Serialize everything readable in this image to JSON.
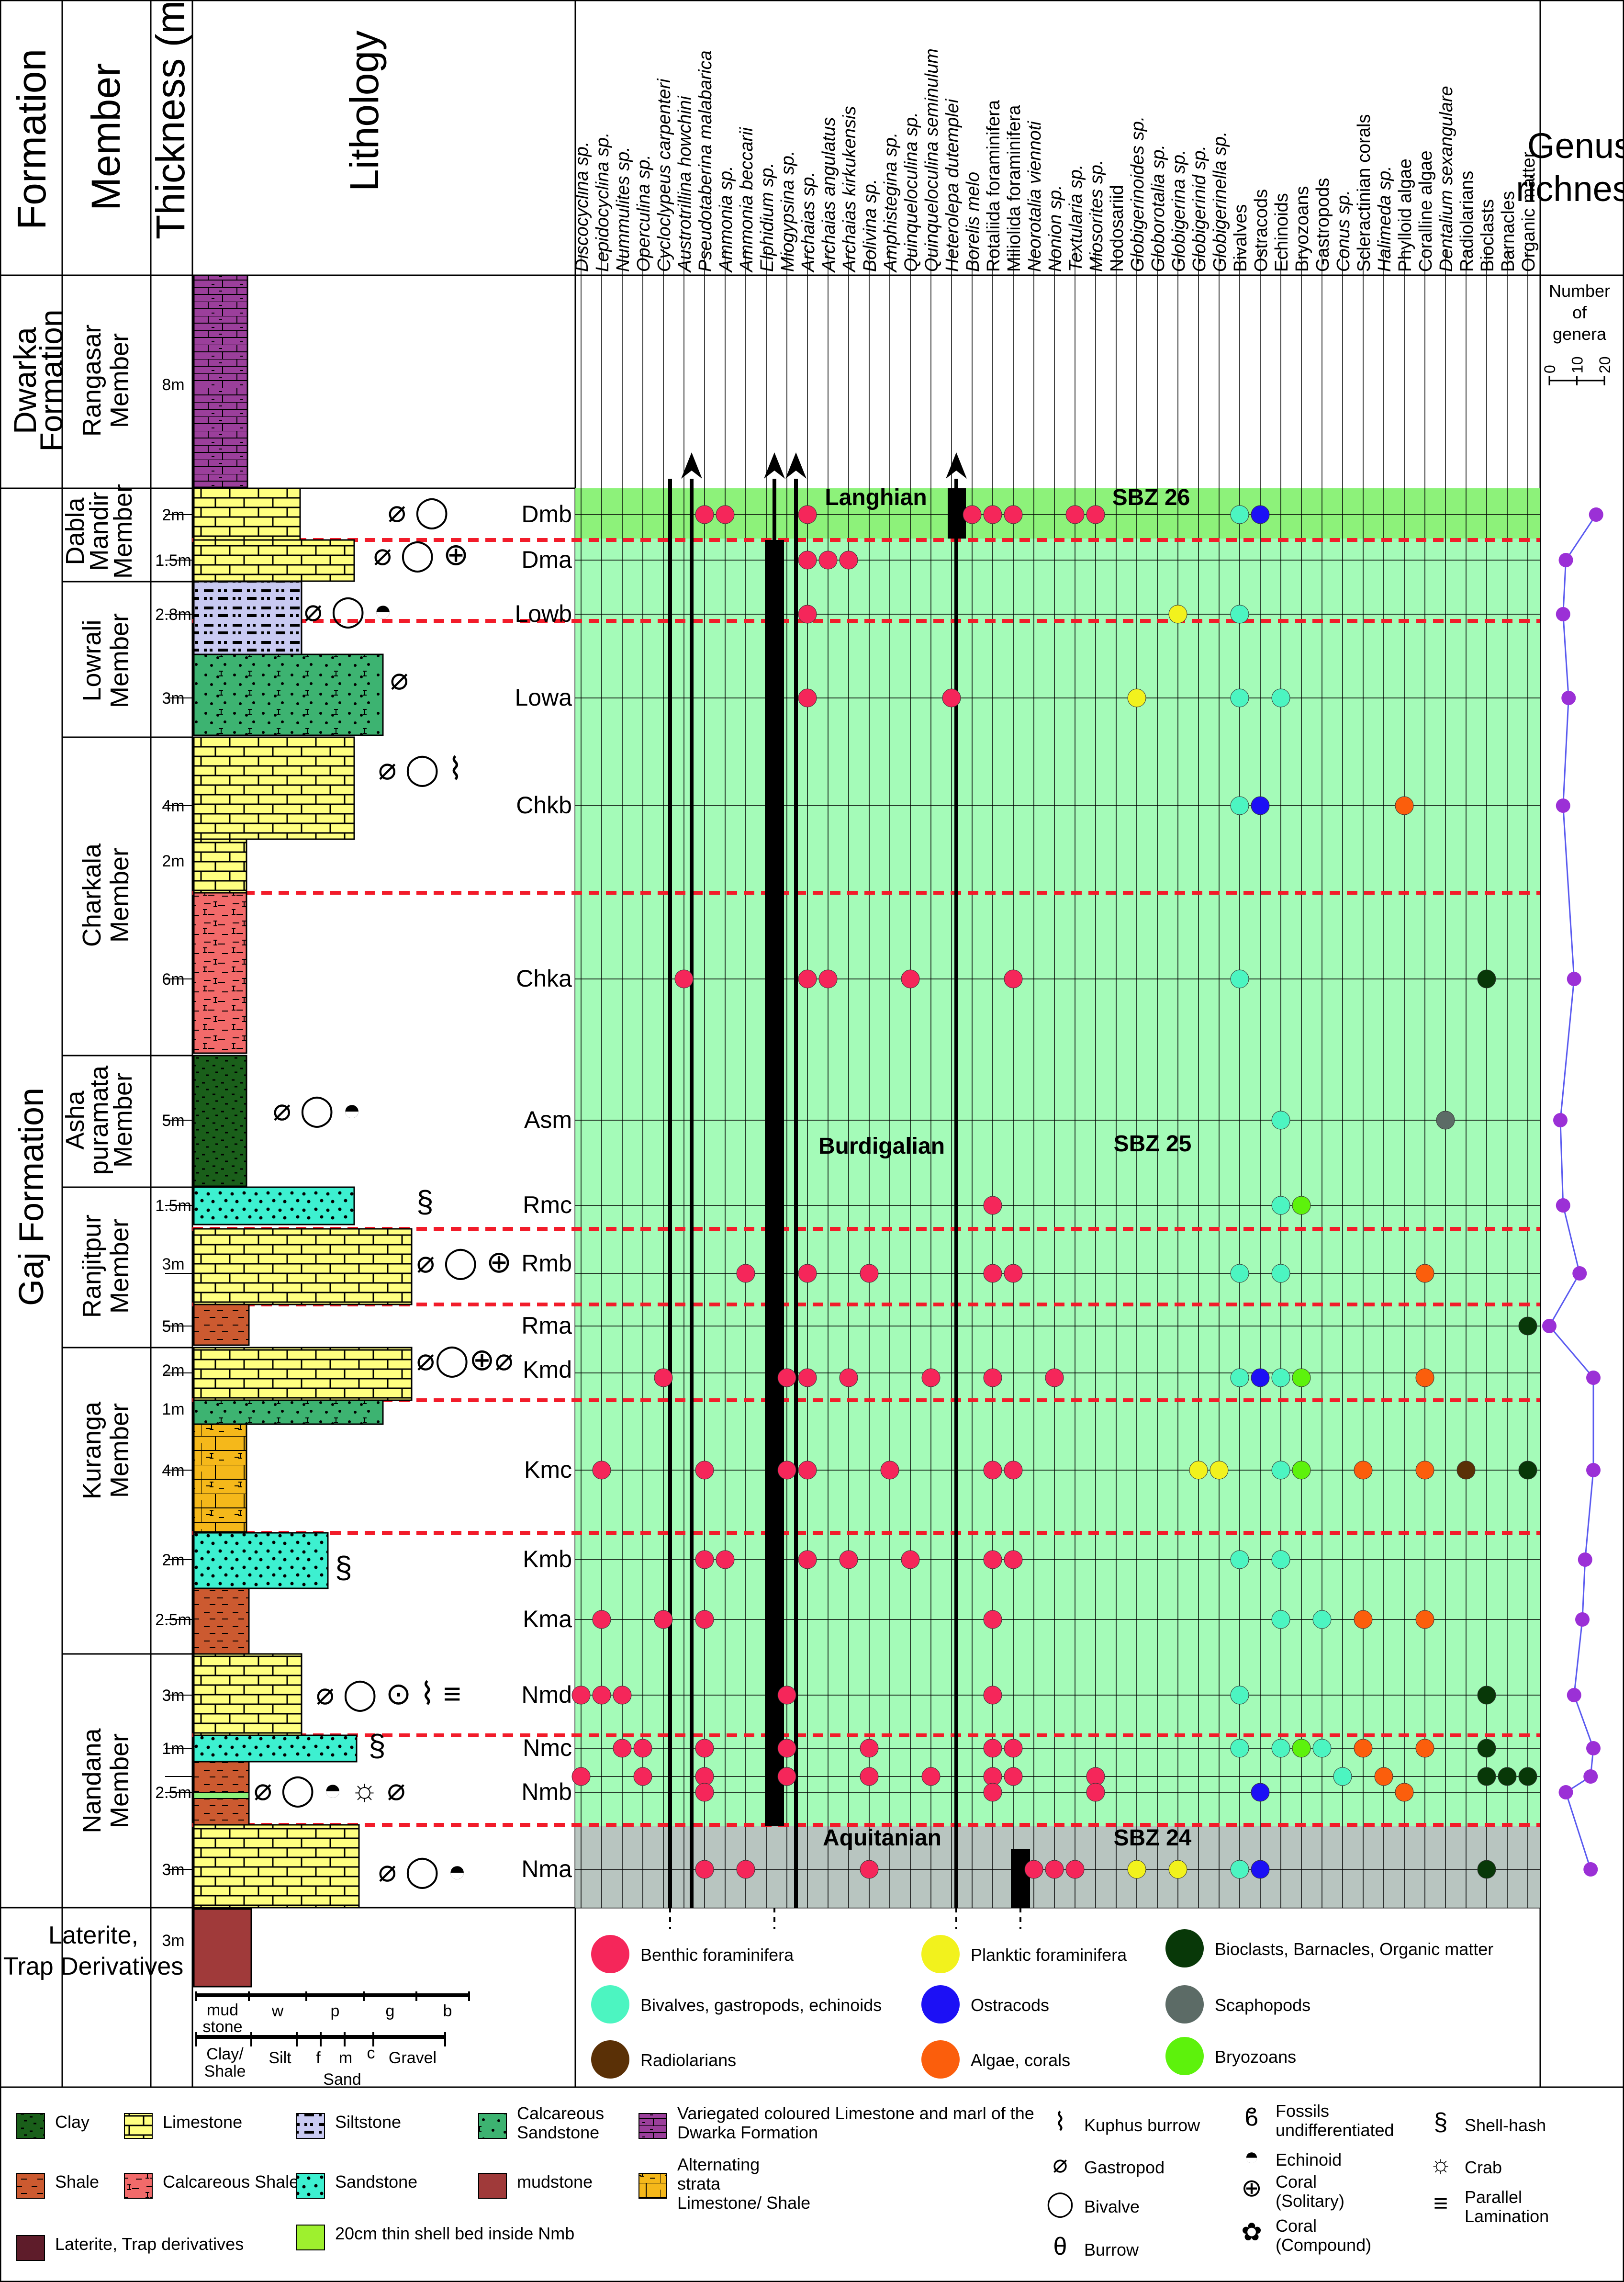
{
  "headers": {
    "formation": "Formation",
    "member": "Member",
    "thickness": "Thickness (m)",
    "lithology": "Lithology",
    "genus_richness": "Genus richness",
    "richness_axis_title": "Number of genera",
    "richness_ticks": [
      "0",
      "10",
      "20"
    ]
  },
  "formations": [
    {
      "id": "dwarka",
      "name": "Dwarka Formation"
    },
    {
      "id": "gaj",
      "name": "Gaj Formation"
    },
    {
      "id": "laterite",
      "name": "Laterite, Trap Derivatives"
    }
  ],
  "members": [
    {
      "id": "rangasar",
      "name": "Rangasar Member"
    },
    {
      "id": "dabla",
      "name": "Dabla Mandir Member"
    },
    {
      "id": "lowrali",
      "name": "Lowrali Member"
    },
    {
      "id": "charkala",
      "name": "Charkala Member"
    },
    {
      "id": "asha",
      "name": "Asha puramata Member"
    },
    {
      "id": "ranjitpur",
      "name": "Ranjitpur Member"
    },
    {
      "id": "kuranga",
      "name": "Kuranga Member"
    },
    {
      "id": "nandana",
      "name": "Nandana Member"
    }
  ],
  "taxa": [
    {
      "name": "Discocyclina sp.",
      "italic": true
    },
    {
      "name": "Lepidocyclina sp.",
      "italic": true
    },
    {
      "name": "Nummulites sp.",
      "italic": true
    },
    {
      "name": "Operculina sp.",
      "italic": true
    },
    {
      "name": "Cycloclypeus carpenteri",
      "italic": true
    },
    {
      "name": "Austrotrillina howchini",
      "italic": true
    },
    {
      "name": "Pseudotaberina malabarica",
      "italic": true
    },
    {
      "name": "Ammonia sp.",
      "italic": true
    },
    {
      "name": "Ammonia beccarii",
      "italic": true
    },
    {
      "name": "Elphidium sp.",
      "italic": true
    },
    {
      "name": "Miogypsina sp.",
      "italic": true
    },
    {
      "name": "Archaias sp.",
      "italic": true
    },
    {
      "name": "Archaias angulatus",
      "italic": true
    },
    {
      "name": "Archaias kirkukensis",
      "italic": true
    },
    {
      "name": "Bolivina sp.",
      "italic": true
    },
    {
      "name": "Amphistegina sp.",
      "italic": true
    },
    {
      "name": "Quinqueloculina sp.",
      "italic": true
    },
    {
      "name": "Quinqueloculina seminulum",
      "italic": true
    },
    {
      "name": "Heterolepa dutemplei",
      "italic": true
    },
    {
      "name": "Borelis melo",
      "italic": true
    },
    {
      "name": "Rotaliida foraminifera",
      "italic": false
    },
    {
      "name": "Miliolida foraminifera",
      "italic": false
    },
    {
      "name": "Neorotalia viennoti",
      "italic": true
    },
    {
      "name": "Nonion sp.",
      "italic": true
    },
    {
      "name": "Textularia sp.",
      "italic": true
    },
    {
      "name": "Miosorites sp.",
      "italic": true
    },
    {
      "name": "Nodosariid",
      "italic": false
    },
    {
      "name": "Globigerinoides sp.",
      "italic": true
    },
    {
      "name": "Globorotalia sp.",
      "italic": true
    },
    {
      "name": "Globigerina sp.",
      "italic": true
    },
    {
      "name": "Globigerinid sp.",
      "italic": true
    },
    {
      "name": "Globigerinella sp.",
      "italic": true
    },
    {
      "name": "Bivalves",
      "italic": false
    },
    {
      "name": "Ostracods",
      "italic": false
    },
    {
      "name": "Echinoids",
      "italic": false
    },
    {
      "name": "Bryozoans",
      "italic": false
    },
    {
      "name": "Gastropods",
      "italic": false
    },
    {
      "name": "Conus sp.",
      "italic": true
    },
    {
      "name": "Scleractinian corals",
      "italic": false
    },
    {
      "name": "Halimeda sp.",
      "italic": true
    },
    {
      "name": "Phylloid algae",
      "italic": false
    },
    {
      "name": "Coralline algae",
      "italic": false
    },
    {
      "name": "Dentalium sexangulare",
      "italic": true
    },
    {
      "name": "Radiolarians",
      "italic": false
    },
    {
      "name": "Bioclasts",
      "italic": false
    },
    {
      "name": "Barnacles",
      "italic": false
    },
    {
      "name": "Organic matter",
      "italic": false
    }
  ],
  "samples": [
    {
      "code": "Dmb",
      "thickness": "2m"
    },
    {
      "code": "Dma",
      "thickness": "1.5m"
    },
    {
      "code": "Lowb",
      "thickness": "2.8m"
    },
    {
      "code": "Lowa",
      "thickness": "3m"
    },
    {
      "code": "Chkb",
      "thickness": "4m"
    },
    {
      "code": "Chka",
      "thickness": "6m"
    },
    {
      "code": "Asm",
      "thickness": "5m"
    },
    {
      "code": "Rmc",
      "thickness": "1.5m"
    },
    {
      "code": "Rmb",
      "thickness": "3m"
    },
    {
      "code": "Rma",
      "thickness": "5m"
    },
    {
      "code": "Kmd",
      "thickness": "2m"
    },
    {
      "code": "Kmc",
      "thickness": "4m"
    },
    {
      "code": "Kmb",
      "thickness": "2m"
    },
    {
      "code": "Kma",
      "thickness": "2.5m"
    },
    {
      "code": "Nmd",
      "thickness": "3m"
    },
    {
      "code": "Nmc",
      "thickness": "1m"
    },
    {
      "code": "Nmb",
      "thickness": "2.5m"
    },
    {
      "code": "Nma",
      "thickness": "3m"
    }
  ],
  "extra_thickness": [
    {
      "id": "rangasar",
      "label": "8m"
    },
    {
      "id": "charkala-upper",
      "label": "2m"
    },
    {
      "id": "kuranga-mid",
      "label": "1m"
    },
    {
      "id": "laterite",
      "label": "3m"
    }
  ],
  "stages": [
    {
      "name": "Langhian",
      "zone": "SBZ 26"
    },
    {
      "name": "Burdigalian",
      "zone": "SBZ 25"
    },
    {
      "name": "Aquitanian",
      "zone": "SBZ 24"
    }
  ],
  "grain_scale": {
    "top": [
      "mud stone",
      "w",
      "p",
      "g",
      "b"
    ],
    "bottom": [
      "Clay/ Shale",
      "Silt",
      "f",
      "m",
      "c",
      "Gravel"
    ],
    "sand": "Sand"
  },
  "occurrence_legend": [
    {
      "label": "Benthic foraminifera",
      "color": "#f5265a"
    },
    {
      "label": "Bivalves, gastropods, echinoids",
      "color": "#4cf5c1"
    },
    {
      "label": "Radiolarians",
      "color": "#5a3006"
    },
    {
      "label": "Planktic foraminifera",
      "color": "#f2f21d"
    },
    {
      "label": "Ostracods",
      "color": "#1c10f5"
    },
    {
      "label": "Algae, corals",
      "color": "#fb5e0c"
    },
    {
      "label": "Bioclasts, Barnacles, Organic matter",
      "color": "#083808"
    },
    {
      "label": "Scaphopods",
      "color": "#5c6b66"
    },
    {
      "label": "Bryozoans",
      "color": "#5df20c"
    }
  ],
  "lithology_legend": [
    {
      "label": "Clay",
      "pattern": "clay"
    },
    {
      "label": "Limestone",
      "pattern": "limestone"
    },
    {
      "label": "Siltstone",
      "pattern": "siltstone"
    },
    {
      "label": "Calcareous Sandstone",
      "pattern": "calcsand"
    },
    {
      "label": "Variegated coloured Limestone and marl of the Dwarka Formation",
      "pattern": "dwarka"
    },
    {
      "label": "Shale",
      "pattern": "shale"
    },
    {
      "label": "Calcareous Shale",
      "pattern": "calcshale"
    },
    {
      "label": "Sandstone",
      "pattern": "sandstone"
    },
    {
      "label": "mudstone",
      "pattern": "mudstone"
    },
    {
      "label": "Alternating strata Limestone/ Shale",
      "pattern": "alternating"
    },
    {
      "label": "Laterite, Trap derivatives",
      "pattern": "laterite"
    },
    {
      "label": "20cm thin shell bed inside Nmb",
      "pattern": "shellbed"
    }
  ],
  "symbol_legend": [
    {
      "label": "Kuphus burrow",
      "icon": "kuphus"
    },
    {
      "label": "Gastropod",
      "icon": "gastropod"
    },
    {
      "label": "Bivalve",
      "icon": "bivalve"
    },
    {
      "label": "Burrow",
      "icon": "burrow"
    },
    {
      "label": "Fossils undifferentiated",
      "icon": "fossil"
    },
    {
      "label": "Echinoid",
      "icon": "echinoid"
    },
    {
      "label": "Coral (Solitary)",
      "icon": "coral-solitary"
    },
    {
      "label": "Coral (Compound)",
      "icon": "coral-compound"
    },
    {
      "label": "Shell-hash",
      "icon": "shellhash"
    },
    {
      "label": "Crab",
      "icon": "crab"
    },
    {
      "label": "Parallel Lamination",
      "icon": "lamination"
    }
  ],
  "richness": [
    {
      "sample": "Dmb",
      "genera": 17
    },
    {
      "sample": "Dma",
      "genera": 6
    },
    {
      "sample": "Lowb",
      "genera": 5
    },
    {
      "sample": "Lowa",
      "genera": 7
    },
    {
      "sample": "Chkb",
      "genera": 5
    },
    {
      "sample": "Chka",
      "genera": 9
    },
    {
      "sample": "Asm",
      "genera": 4
    },
    {
      "sample": "Rmc",
      "genera": 5
    },
    {
      "sample": "Rmb",
      "genera": 11
    },
    {
      "sample": "Rma",
      "genera": 0
    },
    {
      "sample": "Kmd",
      "genera": 16
    },
    {
      "sample": "Kmc",
      "genera": 16
    },
    {
      "sample": "Kmb",
      "genera": 13
    },
    {
      "sample": "Kma",
      "genera": 12
    },
    {
      "sample": "Nmd",
      "genera": 9
    },
    {
      "sample": "Nmc",
      "genera": 16
    },
    {
      "sample": "Nmb",
      "genera": 15
    },
    {
      "sample": "Nmb2",
      "genera": 6
    },
    {
      "sample": "Nma",
      "genera": 15
    }
  ],
  "occurrences": [
    {
      "r": 0,
      "c": [
        6,
        7,
        11,
        19,
        20,
        21,
        24,
        25
      ],
      "k": "b"
    },
    {
      "r": 0,
      "c": [
        32
      ],
      "k": "v"
    },
    {
      "r": 0,
      "c": [
        33
      ],
      "k": "o"
    },
    {
      "r": 1,
      "c": [
        11,
        12,
        13
      ],
      "k": "b"
    },
    {
      "r": 2,
      "c": [
        11
      ],
      "k": "b"
    },
    {
      "r": 2,
      "c": [
        29
      ],
      "k": "p"
    },
    {
      "r": 2,
      "c": [
        32
      ],
      "k": "v"
    },
    {
      "r": 3,
      "c": [
        11,
        18
      ],
      "k": "b"
    },
    {
      "r": 3,
      "c": [
        27
      ],
      "k": "p"
    },
    {
      "r": 3,
      "c": [
        32,
        34
      ],
      "k": "v"
    },
    {
      "r": 4,
      "c": [
        32
      ],
      "k": "v"
    },
    {
      "r": 4,
      "c": [
        33
      ],
      "k": "o"
    },
    {
      "r": 4,
      "c": [
        40
      ],
      "k": "a"
    },
    {
      "r": 5,
      "c": [
        5,
        11,
        12,
        16,
        21
      ],
      "k": "b"
    },
    {
      "r": 5,
      "c": [
        32
      ],
      "k": "v"
    },
    {
      "r": 5,
      "c": [
        44
      ],
      "k": "x"
    },
    {
      "r": 6,
      "c": [
        34
      ],
      "k": "v"
    },
    {
      "r": 6,
      "c": [
        42
      ],
      "k": "s"
    },
    {
      "r": 7,
      "c": [
        20
      ],
      "k": "b"
    },
    {
      "r": 7,
      "c": [
        34
      ],
      "k": "v"
    },
    {
      "r": 7,
      "c": [
        35
      ],
      "k": "z"
    },
    {
      "r": 8,
      "c": [
        8,
        11,
        14,
        20,
        21
      ],
      "k": "b"
    },
    {
      "r": 8,
      "c": [
        32,
        34
      ],
      "k": "v"
    },
    {
      "r": 8,
      "c": [
        41
      ],
      "k": "a"
    },
    {
      "r": 9,
      "c": [
        46
      ],
      "k": "x"
    },
    {
      "r": 10,
      "c": [
        4,
        10,
        11,
        13,
        17,
        20,
        23
      ],
      "k": "b"
    },
    {
      "r": 10,
      "c": [
        32,
        34
      ],
      "k": "v"
    },
    {
      "r": 10,
      "c": [
        33
      ],
      "k": "o"
    },
    {
      "r": 10,
      "c": [
        35
      ],
      "k": "z"
    },
    {
      "r": 10,
      "c": [
        41
      ],
      "k": "a"
    },
    {
      "r": 11,
      "c": [
        1,
        6,
        10,
        11,
        15,
        20,
        21
      ],
      "k": "b"
    },
    {
      "r": 11,
      "c": [
        30,
        31
      ],
      "k": "p"
    },
    {
      "r": 11,
      "c": [
        34
      ],
      "k": "v"
    },
    {
      "r": 11,
      "c": [
        35
      ],
      "k": "z"
    },
    {
      "r": 11,
      "c": [
        38,
        41
      ],
      "k": "a"
    },
    {
      "r": 11,
      "c": [
        43
      ],
      "k": "r"
    },
    {
      "r": 11,
      "c": [
        46
      ],
      "k": "x"
    },
    {
      "r": 12,
      "c": [
        6,
        7,
        11,
        13,
        16,
        20,
        21
      ],
      "k": "b"
    },
    {
      "r": 12,
      "c": [
        32,
        34
      ],
      "k": "v"
    },
    {
      "r": 13,
      "c": [
        1,
        4,
        6,
        20
      ],
      "k": "b"
    },
    {
      "r": 13,
      "c": [
        34,
        36
      ],
      "k": "v"
    },
    {
      "r": 13,
      "c": [
        38,
        41
      ],
      "k": "a"
    },
    {
      "r": 14,
      "c": [
        0,
        1,
        2,
        10,
        20
      ],
      "k": "b"
    },
    {
      "r": 14,
      "c": [
        32
      ],
      "k": "v"
    },
    {
      "r": 14,
      "c": [
        44
      ],
      "k": "x"
    },
    {
      "r": 15,
      "c": [
        2,
        3,
        6,
        10,
        14,
        20,
        21
      ],
      "k": "b"
    },
    {
      "r": 15,
      "c": [
        32,
        34,
        36
      ],
      "k": "v"
    },
    {
      "r": 15,
      "c": [
        35
      ],
      "k": "z"
    },
    {
      "r": 15,
      "c": [
        38,
        41
      ],
      "k": "a"
    },
    {
      "r": 15,
      "c": [
        44
      ],
      "k": "x"
    },
    {
      "r": 16,
      "c": [
        0,
        3,
        6,
        10,
        14,
        17,
        20,
        21,
        25
      ],
      "k": "b"
    },
    {
      "r": 16,
      "c": [
        37
      ],
      "k": "v"
    },
    {
      "r": 16,
      "c": [
        39
      ],
      "k": "a"
    },
    {
      "r": 16,
      "c": [
        44,
        45,
        46
      ],
      "k": "x"
    },
    {
      "r": 17,
      "c": [
        6,
        20,
        25
      ],
      "k": "b"
    },
    {
      "r": 17,
      "c": [
        33
      ],
      "k": "o"
    },
    {
      "r": 17,
      "c": [
        40
      ],
      "k": "a"
    },
    {
      "r": 18,
      "c": [
        6,
        8,
        14,
        22,
        23,
        24
      ],
      "k": "b"
    },
    {
      "r": 18,
      "c": [
        27,
        29
      ],
      "k": "p"
    },
    {
      "r": 18,
      "c": [
        32
      ],
      "k": "v"
    },
    {
      "r": 18,
      "c": [
        33
      ],
      "k": "o"
    },
    {
      "r": 18,
      "c": [
        44
      ],
      "k": "x"
    }
  ]
}
